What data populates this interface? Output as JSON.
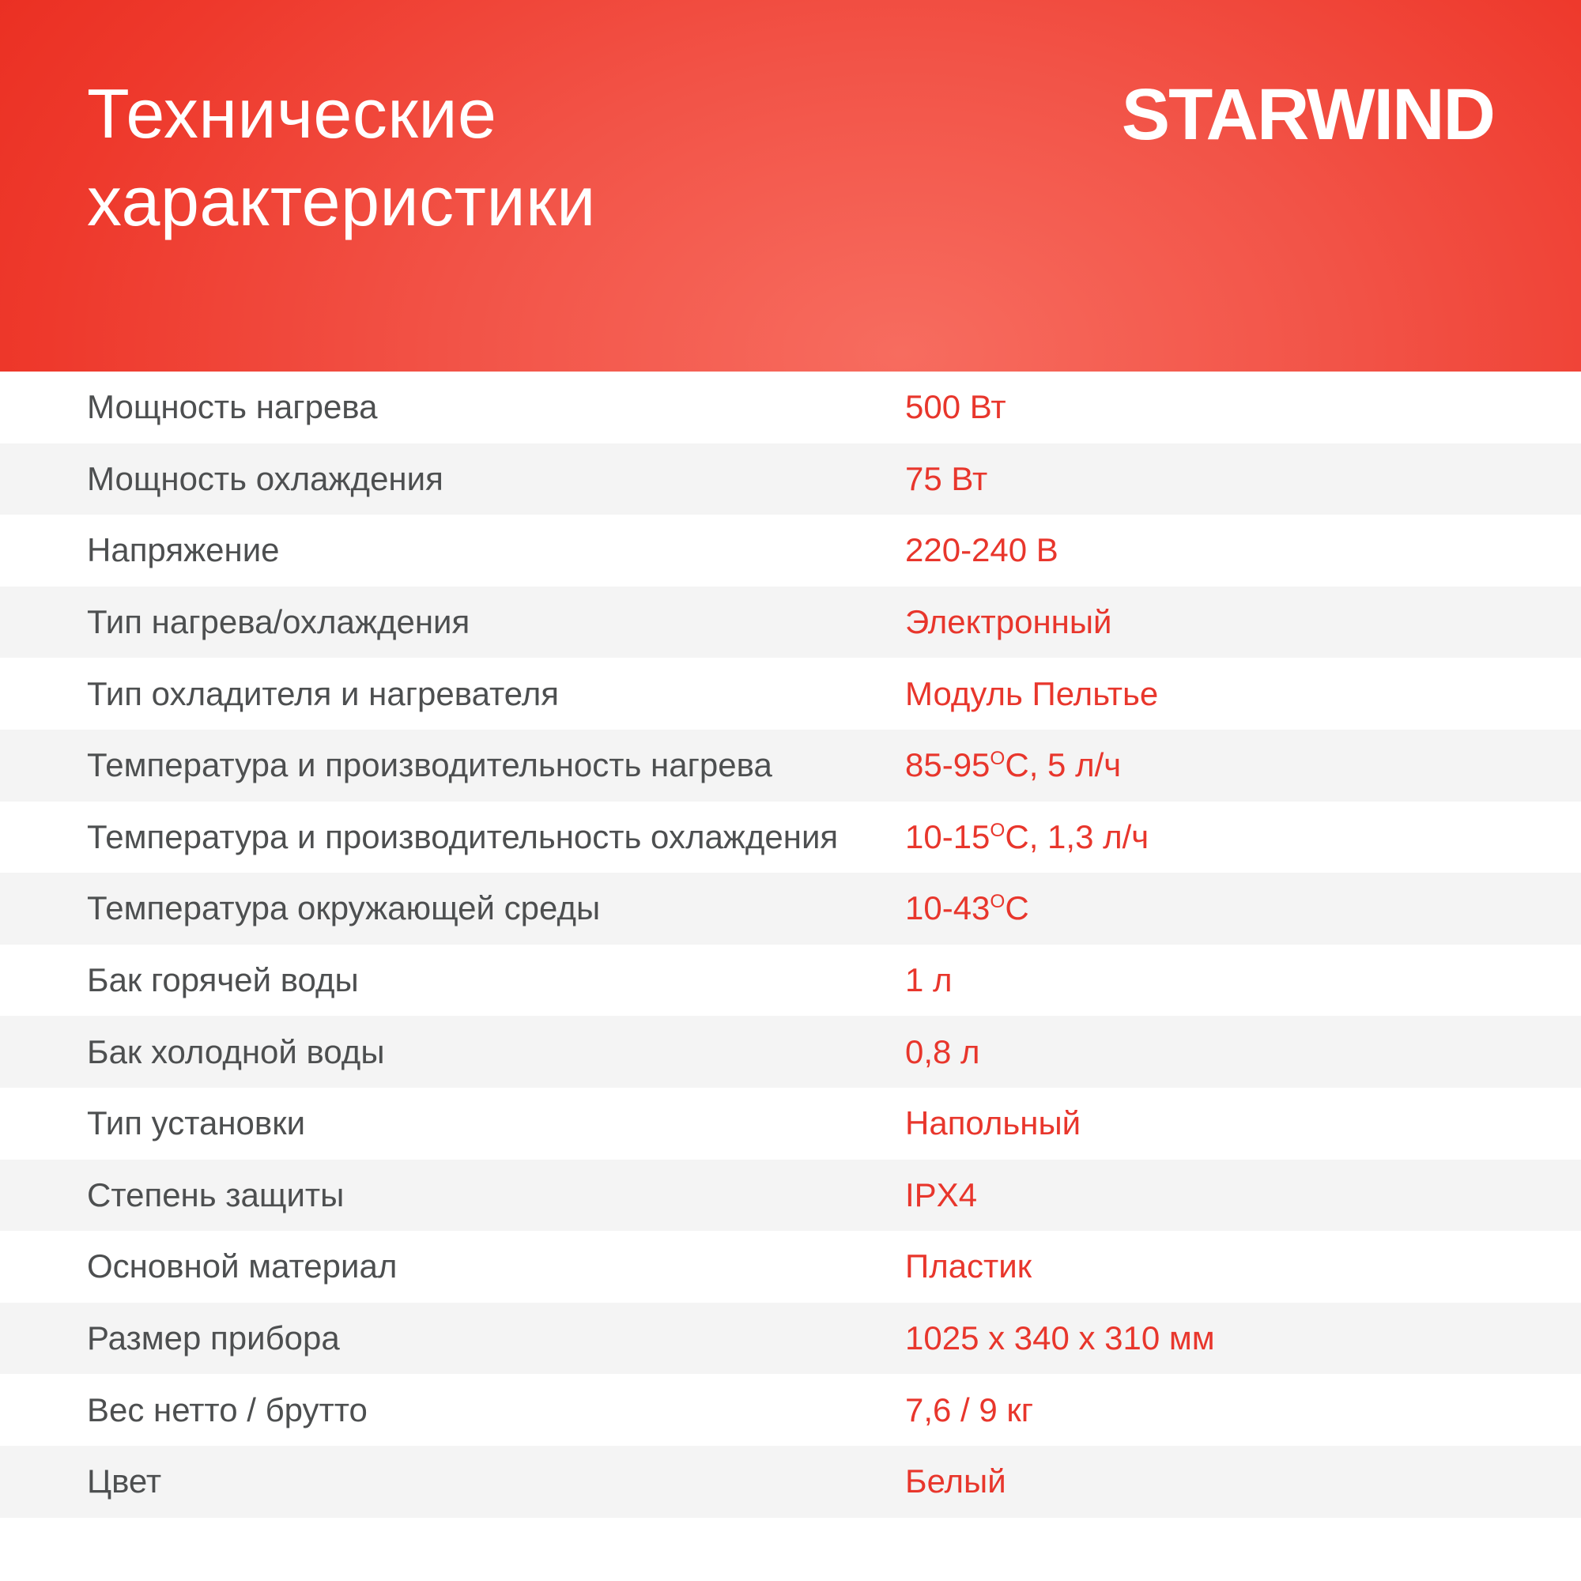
{
  "header": {
    "title_lines": [
      "Технические",
      "характеристики"
    ],
    "brand": "STARWIND"
  },
  "colors": {
    "header_red_edge": "#ea2f22",
    "header_red_mid": "#f25347",
    "header_red_highlight": "#f76c5f",
    "accent_red": "#e8362c",
    "label_gray": "#4d4f50",
    "row_bg": "#ffffff",
    "row_alt_bg": "#f4f4f4",
    "text_white": "#ffffff"
  },
  "table": {
    "rows": [
      {
        "label": "Мощность нагрева",
        "value": "500 Вт"
      },
      {
        "label": "Мощность охлаждения",
        "value": "75 Вт"
      },
      {
        "label": "Напряжение",
        "value": "220-240 В"
      },
      {
        "label": "Тип нагрева/охлаждения",
        "value": "Электронный"
      },
      {
        "label": "Тип охладителя и нагревателя",
        "value": "Модуль Пельтье"
      },
      {
        "label": "Температура и производительность нагрева",
        "value": "85-95<sup>О</sup>С, 5 л/ч"
      },
      {
        "label": "Температура и производительность охлаждения",
        "value": "10-15<sup>О</sup>С, 1,3 л/ч"
      },
      {
        "label": "Температура окружающей среды",
        "value": "10-43<sup>О</sup>С"
      },
      {
        "label": "Бак горячей воды",
        "value": "1 л"
      },
      {
        "label": "Бак холодной воды",
        "value": "0,8 л"
      },
      {
        "label": "Тип установки",
        "value": "Напольный"
      },
      {
        "label": "Степень защиты",
        "value": "IPX4"
      },
      {
        "label": "Основной материал",
        "value": "Пластик"
      },
      {
        "label": "Размер прибора",
        "value": "1025 x 340 x 310 мм"
      },
      {
        "label": "Вес нетто / брутто",
        "value": "7,6 / 9 кг"
      },
      {
        "label": "Цвет",
        "value": "Белый"
      }
    ]
  }
}
